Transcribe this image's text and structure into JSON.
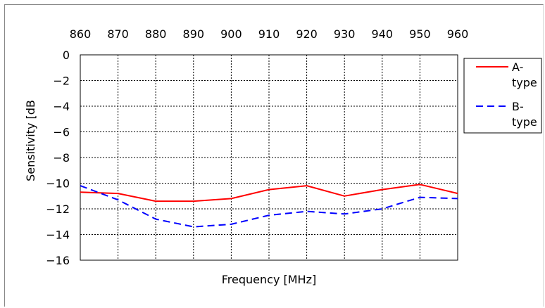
{
  "chart_data": {
    "type": "line",
    "xlabel": "Frequency [MHz]",
    "ylabel": "Sensitivity [dB",
    "x": [
      860,
      870,
      880,
      890,
      900,
      910,
      920,
      930,
      940,
      950,
      960
    ],
    "xlim": [
      860,
      960
    ],
    "ylim": [
      -16,
      0
    ],
    "xticks": [
      860,
      870,
      880,
      890,
      900,
      910,
      920,
      930,
      940,
      950,
      960
    ],
    "yticks": [
      0,
      -2,
      -4,
      -6,
      -8,
      -10,
      -12,
      -14,
      -16
    ],
    "xtick_labels": [
      "860",
      "870",
      "880",
      "890",
      "900",
      "910",
      "920",
      "930",
      "940",
      "950",
      "960"
    ],
    "ytick_labels": [
      "0",
      "−2",
      "−4",
      "−6",
      "−8",
      "−10",
      "−12",
      "−14",
      "−16"
    ],
    "x_axis_position": "top",
    "grid": true,
    "legend_position": "right",
    "series": [
      {
        "name": "A-type",
        "legend_lines": [
          "A-",
          "type"
        ],
        "color": "#ff0000",
        "style": "solid",
        "values": [
          -10.7,
          -10.8,
          -11.4,
          -11.4,
          -11.2,
          -10.5,
          -10.2,
          -11.0,
          -10.5,
          -10.1,
          -10.8
        ]
      },
      {
        "name": "B-type",
        "legend_lines": [
          "B-",
          "type"
        ],
        "color": "#0000ff",
        "style": "dashed",
        "values": [
          -10.2,
          -11.3,
          -12.8,
          -13.4,
          -13.2,
          -12.5,
          -12.2,
          -12.4,
          -12.0,
          -11.1,
          -11.2
        ]
      }
    ]
  }
}
